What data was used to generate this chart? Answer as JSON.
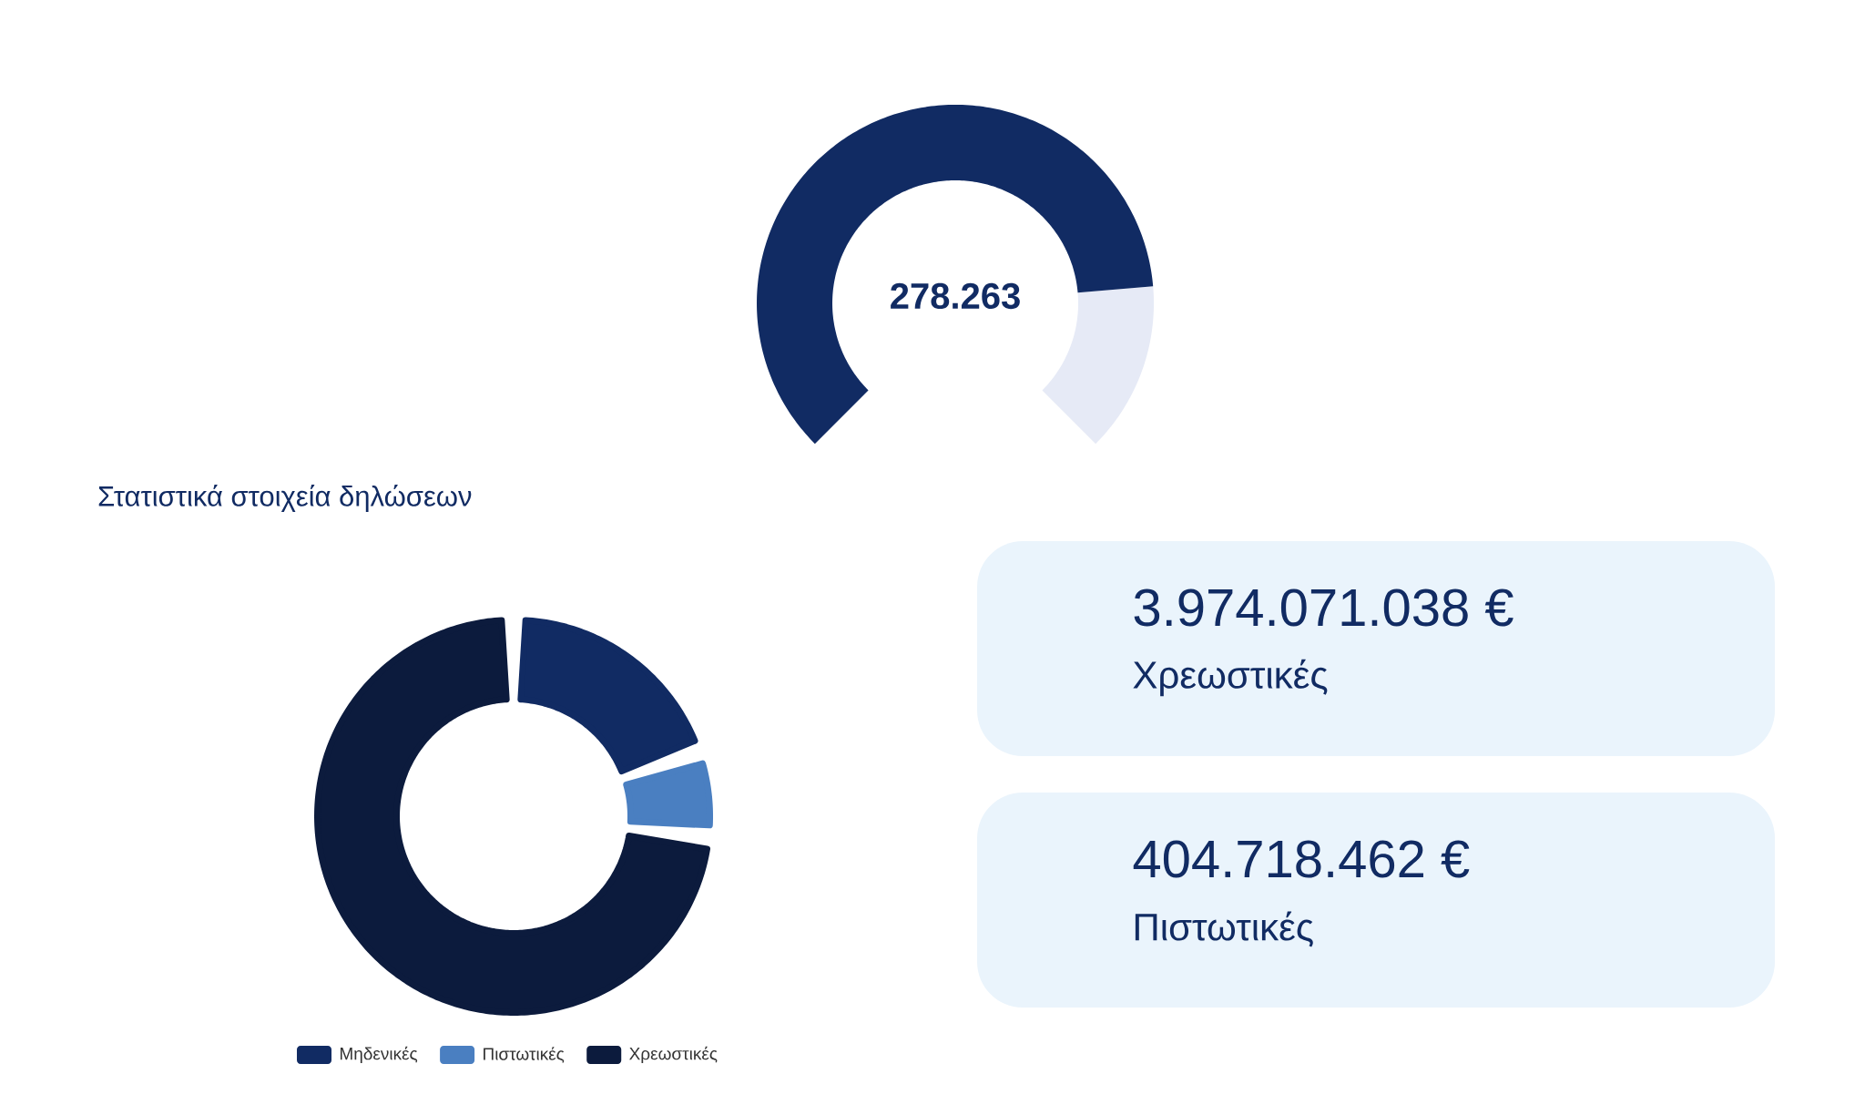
{
  "chart_data": [
    {
      "type": "donut",
      "categories": [
        null,
        null
      ],
      "values": [
        81.5,
        18.5
      ],
      "colors": [
        "#112b63",
        "#e6eaf6"
      ],
      "annotations": [
        "278.263"
      ]
    },
    {
      "type": "donut",
      "title": "Στατιστικά στοιχεία δηλώσεων",
      "categories": [
        "Μηδενικές",
        "Πιστωτικές",
        "Χρεωστικές"
      ],
      "values": [
        19.7,
        7.0,
        73.3
      ],
      "colors": [
        "#112b63",
        "#4a7fc1",
        "#0c1b3d"
      ],
      "legend": "bottom"
    },
    {
      "type": "other",
      "annotations": [
        "3.974.071.038 €",
        "Χρεωστικές",
        "404.718.462 €",
        "Πιστωτικές"
      ]
    }
  ]
}
